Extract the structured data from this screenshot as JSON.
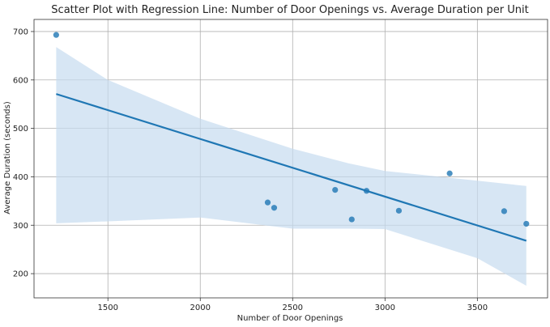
{
  "chart_data": {
    "type": "scatter",
    "title": "Scatter Plot with Regression Line: Number of Door Openings vs. Average Duration per Unit",
    "xlabel": "Number of Door Openings",
    "ylabel": "Average Duration (seconds)",
    "xlim": [
      1100,
      3880
    ],
    "ylim": [
      150,
      725
    ],
    "x_ticks": [
      1500,
      2000,
      2500,
      3000,
      3500
    ],
    "y_ticks": [
      200,
      300,
      400,
      500,
      600,
      700
    ],
    "grid": true,
    "colors": {
      "points": "#1f77b4",
      "line": "#1f77b4",
      "band": "#c6dbef"
    },
    "points": [
      {
        "x": 1220,
        "y": 693
      },
      {
        "x": 2365,
        "y": 347
      },
      {
        "x": 2400,
        "y": 336
      },
      {
        "x": 2730,
        "y": 373
      },
      {
        "x": 2820,
        "y": 312
      },
      {
        "x": 2900,
        "y": 371
      },
      {
        "x": 3075,
        "y": 330
      },
      {
        "x": 3350,
        "y": 407
      },
      {
        "x": 3645,
        "y": 329
      },
      {
        "x": 3765,
        "y": 303
      }
    ],
    "regression": {
      "x": [
        1220,
        3765
      ],
      "y": [
        571,
        268
      ]
    },
    "confidence_band": {
      "x": [
        1220,
        1500,
        2000,
        2500,
        2800,
        3000,
        3500,
        3765
      ],
      "upper": [
        668,
        600,
        520,
        458,
        428,
        412,
        392,
        381
      ],
      "lower": [
        304,
        308,
        316,
        293,
        293,
        292,
        232,
        175
      ]
    }
  }
}
